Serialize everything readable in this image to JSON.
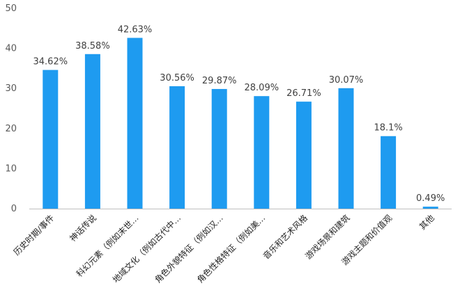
{
  "chart_data": {
    "type": "bar",
    "categories": [
      "历史时期/事件",
      "神话传说",
      "科幻元素（例如末世…",
      "地域文化（例如古代中…",
      "角色外貌特征（例如汉…",
      "角色性格特征（例如美…",
      "音乐和艺术风格",
      "游戏场景和建筑",
      "游戏主题和价值观",
      "其他"
    ],
    "series": [
      {
        "values": [
          34.62,
          38.58,
          42.63,
          30.56,
          29.87,
          28.09,
          26.71,
          30.07,
          18.1,
          0.49
        ],
        "data_labels": [
          "34.62%",
          "38.58%",
          "42.63%",
          "30.56%",
          "29.87%",
          "28.09%",
          "26.71%",
          "30.07%",
          "18.1%",
          "0.49%"
        ]
      }
    ],
    "ylim": [
      0,
      50
    ],
    "yticks": [
      "0",
      "10",
      "20",
      "30",
      "40",
      "50"
    ],
    "grid": false,
    "bar_color": "#1E9BF0",
    "axis_color": "#bfbfbf"
  }
}
